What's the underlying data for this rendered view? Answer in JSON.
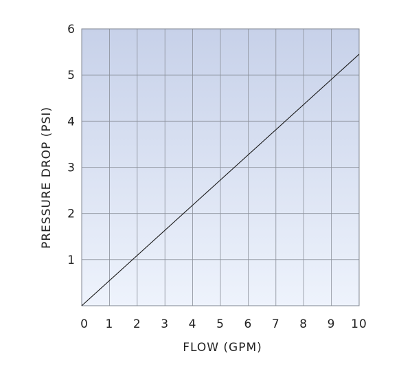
{
  "chart_data": {
    "type": "line",
    "title": "",
    "xlabel": "FLOW (GPM)",
    "ylabel": "PRESSURE DROP (PSI)",
    "xlim": [
      0,
      10
    ],
    "ylim": [
      0,
      6
    ],
    "xticks": [
      0,
      1,
      2,
      3,
      4,
      5,
      6,
      7,
      8,
      9,
      10
    ],
    "yticks": [
      1,
      2,
      3,
      4,
      5,
      6
    ],
    "grid": true,
    "series": [
      {
        "x": [
          0,
          10
        ],
        "y": [
          0,
          5.45
        ]
      }
    ],
    "colors": {
      "line": "#1a1a1a",
      "gradient_top": "#c7d1e9",
      "gradient_bottom": "#eef3fc",
      "grid": "#8a8f99"
    }
  }
}
